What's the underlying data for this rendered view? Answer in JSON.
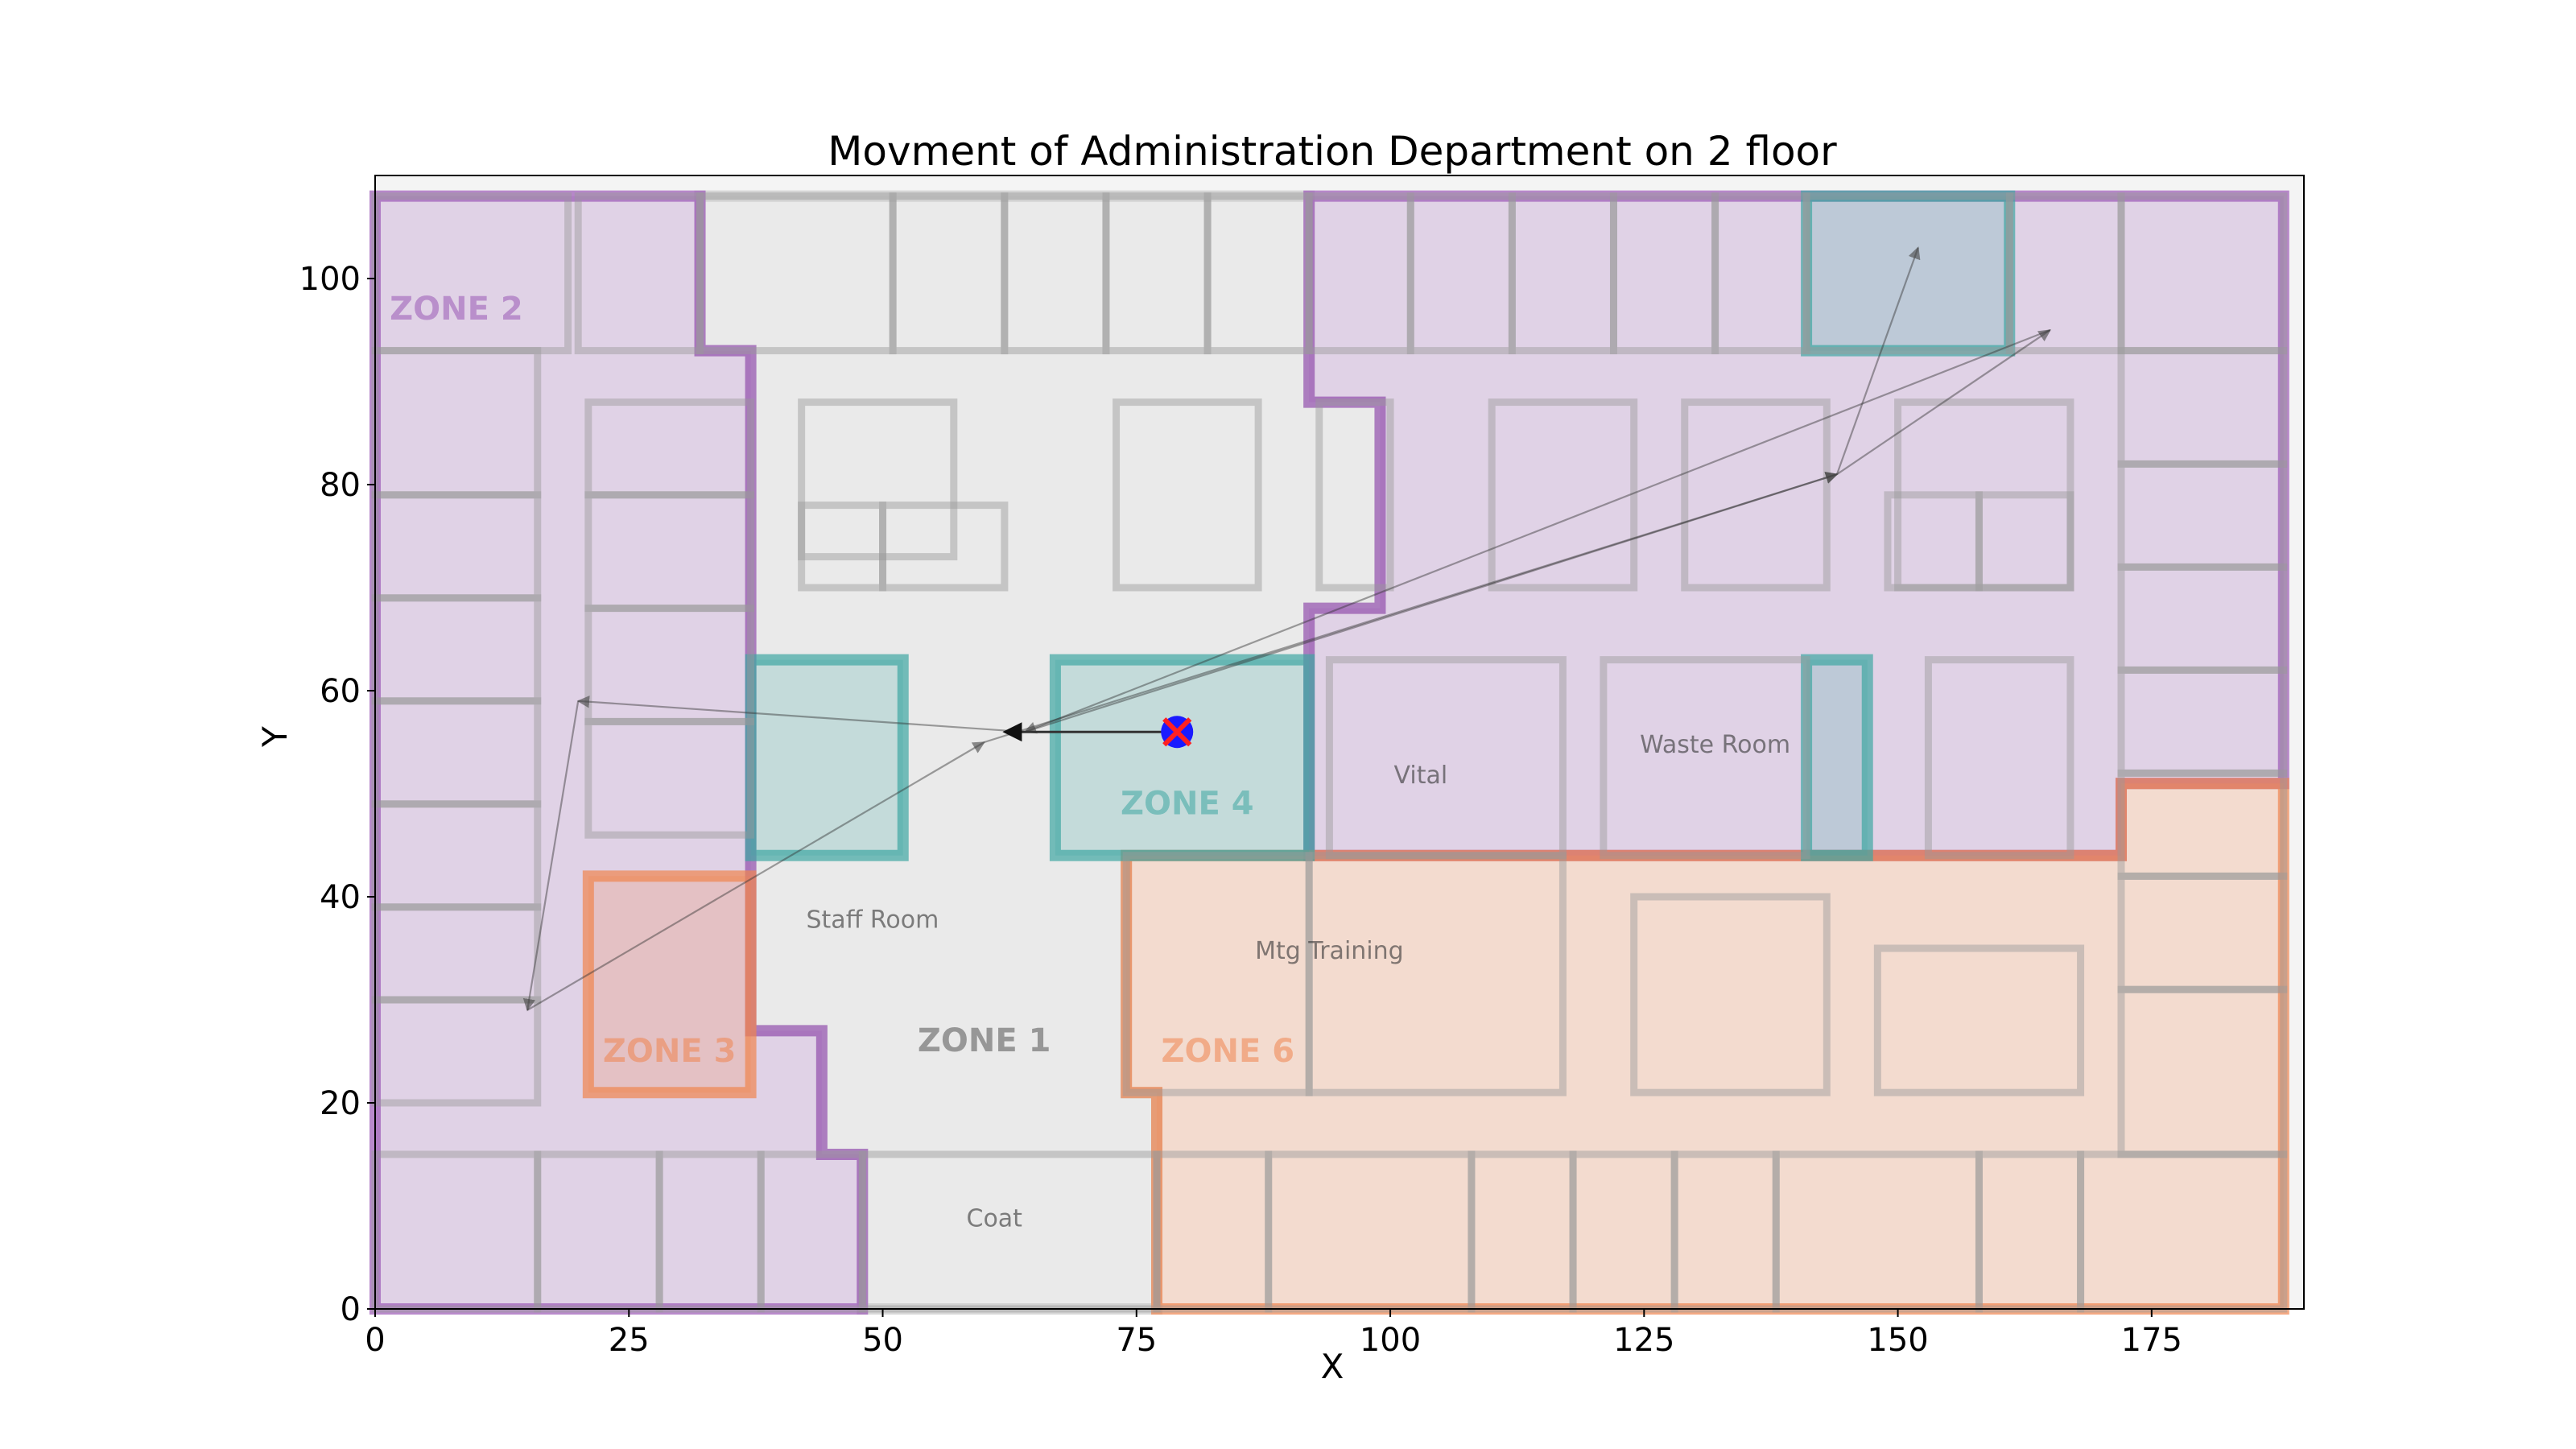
{
  "chart_data": {
    "type": "line",
    "title": "Movment of Administration Department on 2 floor",
    "xlabel": "X",
    "ylabel": "Y",
    "xlim": [
      0,
      190
    ],
    "ylim": [
      0,
      110
    ],
    "xticks": [
      "0",
      "25",
      "50",
      "75",
      "100",
      "125",
      "150",
      "175"
    ],
    "yticks": [
      "0",
      "20",
      "40",
      "60",
      "80",
      "100"
    ],
    "grid": false,
    "colors": {
      "zone_purple": "#9b59b6",
      "zone_teal": "#3fa7a3",
      "zone_orange": "#f0854f",
      "zone_gray": "#c8c8c8",
      "room_wall": "#9a9a9a",
      "arrow": "#333333",
      "marker_circle": "#1a1aff",
      "marker_cross": "#ff2020"
    },
    "zone_labels": [
      {
        "text": "ZONE 1",
        "x": 60,
        "y": 25,
        "zone": "gray"
      },
      {
        "text": "ZONE 2",
        "x": 8,
        "y": 96,
        "zone": "purple"
      },
      {
        "text": "ZONE 3",
        "x": 29,
        "y": 24,
        "zone": "orange"
      },
      {
        "text": "ZONE 4",
        "x": 80,
        "y": 48,
        "zone": "teal"
      },
      {
        "text": "ZONE 6",
        "x": 84,
        "y": 24,
        "zone": "orange"
      }
    ],
    "room_labels": [
      {
        "text": "Mtg Training",
        "x": 94,
        "y": 34
      },
      {
        "text": "Vital",
        "x": 103,
        "y": 51
      },
      {
        "text": "Waste Room",
        "x": 132,
        "y": 54
      },
      {
        "text": "Staff Room",
        "x": 49,
        "y": 37
      },
      {
        "text": "Coat",
        "x": 61,
        "y": 8
      }
    ],
    "series": [
      {
        "points": [
          {
            "x": 64,
            "y": 56
          },
          {
            "x": 144,
            "y": 81
          },
          {
            "x": 165,
            "y": 95
          },
          {
            "x": 64,
            "y": 56
          },
          {
            "x": 20,
            "y": 59
          },
          {
            "x": 15,
            "y": 29
          },
          {
            "x": 60,
            "y": 55
          },
          {
            "x": 144,
            "y": 81
          },
          {
            "x": 152,
            "y": 103
          }
        ]
      },
      {
        "points": [
          {
            "x": 79,
            "y": 56
          },
          {
            "x": 62,
            "y": 56
          }
        ]
      }
    ],
    "marker": {
      "x": 79,
      "y": 56
    }
  }
}
